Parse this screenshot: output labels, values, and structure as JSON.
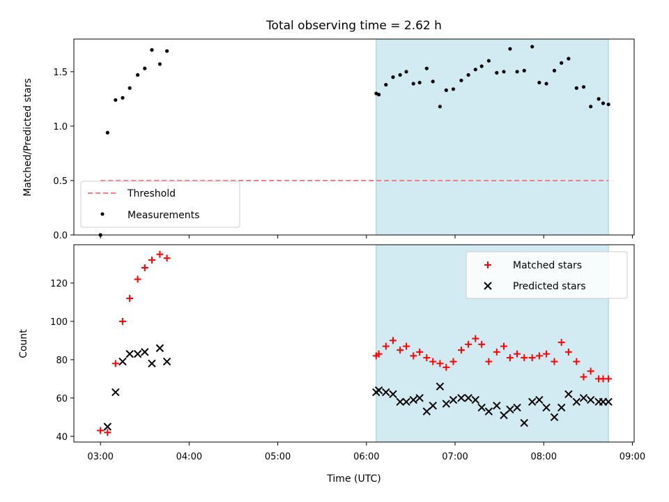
{
  "chart_data": {
    "title": "Total observing time = 2.62 h",
    "xlabel": "Time (UTC)",
    "x_units": "hours UTC",
    "xlim": [
      2.7,
      9.02
    ],
    "x_ticks": [
      3,
      4,
      5,
      6,
      7,
      8,
      9
    ],
    "x_tick_labels": [
      "03:00",
      "04:00",
      "05:00",
      "06:00",
      "07:00",
      "08:00",
      "09:00"
    ],
    "shaded_interval": [
      6.11,
      8.73
    ],
    "shaded_color": "#add8e6",
    "panels": [
      {
        "type": "scatter",
        "ylabel": "Matched/Predicted stars",
        "ylim": [
          0,
          1.8
        ],
        "y_ticks": [
          0,
          0.5,
          1.0,
          1.5
        ],
        "y_tick_labels": [
          "0.0",
          "0.5",
          "1.0",
          "1.5"
        ],
        "legend_position": "lower-left",
        "threshold": {
          "name": "Threshold",
          "y": 0.5,
          "x": [
            3.0,
            8.73
          ],
          "color": "#f08080"
        },
        "series": [
          {
            "name": "Measurements",
            "color": "#000000",
            "marker": "dot",
            "x": [
              3.0,
              3.08,
              3.17,
              3.25,
              3.33,
              3.42,
              3.5,
              3.58,
              3.67,
              3.75,
              6.11,
              6.14,
              6.22,
              6.3,
              6.38,
              6.45,
              6.53,
              6.6,
              6.68,
              6.75,
              6.83,
              6.9,
              6.98,
              7.07,
              7.15,
              7.23,
              7.3,
              7.38,
              7.47,
              7.55,
              7.62,
              7.7,
              7.78,
              7.87,
              7.95,
              8.03,
              8.12,
              8.2,
              8.28,
              8.37,
              8.45,
              8.53,
              8.62,
              8.67,
              8.73
            ],
            "y": [
              0.0,
              0.94,
              1.24,
              1.26,
              1.35,
              1.47,
              1.53,
              1.7,
              1.57,
              1.69,
              1.3,
              1.29,
              1.38,
              1.45,
              1.47,
              1.5,
              1.39,
              1.4,
              1.53,
              1.41,
              1.18,
              1.33,
              1.34,
              1.42,
              1.47,
              1.52,
              1.55,
              1.6,
              1.49,
              1.5,
              1.71,
              1.5,
              1.51,
              1.73,
              1.4,
              1.39,
              1.51,
              1.58,
              1.62,
              1.35,
              1.36,
              1.18,
              1.25,
              1.21,
              1.2
            ]
          }
        ]
      },
      {
        "type": "scatter",
        "ylabel": "Count",
        "ylim": [
          37,
          140
        ],
        "y_ticks": [
          40,
          60,
          80,
          100,
          120
        ],
        "y_tick_labels": [
          "40",
          "60",
          "80",
          "100",
          "120"
        ],
        "legend_position": "top-right",
        "series": [
          {
            "name": "Matched stars",
            "color": "#ff0000",
            "marker": "plus",
            "x": [
              3.0,
              3.08,
              3.17,
              3.25,
              3.33,
              3.42,
              3.5,
              3.58,
              3.67,
              3.75,
              6.11,
              6.14,
              6.22,
              6.3,
              6.38,
              6.45,
              6.53,
              6.6,
              6.68,
              6.75,
              6.83,
              6.9,
              6.98,
              7.07,
              7.15,
              7.23,
              7.3,
              7.38,
              7.47,
              7.55,
              7.62,
              7.7,
              7.78,
              7.87,
              7.95,
              8.03,
              8.12,
              8.2,
              8.28,
              8.37,
              8.45,
              8.53,
              8.62,
              8.67,
              8.73
            ],
            "y": [
              43,
              42,
              78,
              100,
              112,
              122,
              128,
              132,
              135,
              133,
              82,
              83,
              87,
              90,
              85,
              87,
              82,
              84,
              81,
              79,
              78,
              76,
              79,
              85,
              88,
              91,
              88,
              79,
              84,
              87,
              81,
              83,
              81,
              81,
              82,
              83,
              79,
              89,
              84,
              79,
              71,
              74,
              70,
              70,
              70
            ]
          },
          {
            "name": "Predicted stars",
            "color": "#000000",
            "marker": "x",
            "x": [
              3.0,
              3.08,
              3.17,
              3.25,
              3.33,
              3.42,
              3.5,
              3.58,
              3.67,
              3.75,
              6.11,
              6.14,
              6.22,
              6.3,
              6.38,
              6.45,
              6.53,
              6.6,
              6.68,
              6.75,
              6.83,
              6.9,
              6.98,
              7.07,
              7.15,
              7.23,
              7.3,
              7.38,
              7.47,
              7.55,
              7.62,
              7.7,
              7.78,
              7.87,
              7.95,
              8.03,
              8.12,
              8.2,
              8.28,
              8.37,
              8.45,
              8.53,
              8.62,
              8.67,
              8.73
            ],
            "y": [
              null,
              45,
              63,
              79,
              83,
              83,
              84,
              78,
              86,
              79,
              63,
              64,
              63,
              62,
              58,
              58,
              59,
              60,
              53,
              56,
              66,
              57,
              59,
              60,
              60,
              59,
              55,
              53,
              56,
              51,
              54,
              55,
              47,
              58,
              59,
              55,
              50,
              55,
              62,
              58,
              60,
              59,
              58,
              58,
              58
            ]
          }
        ]
      }
    ]
  }
}
